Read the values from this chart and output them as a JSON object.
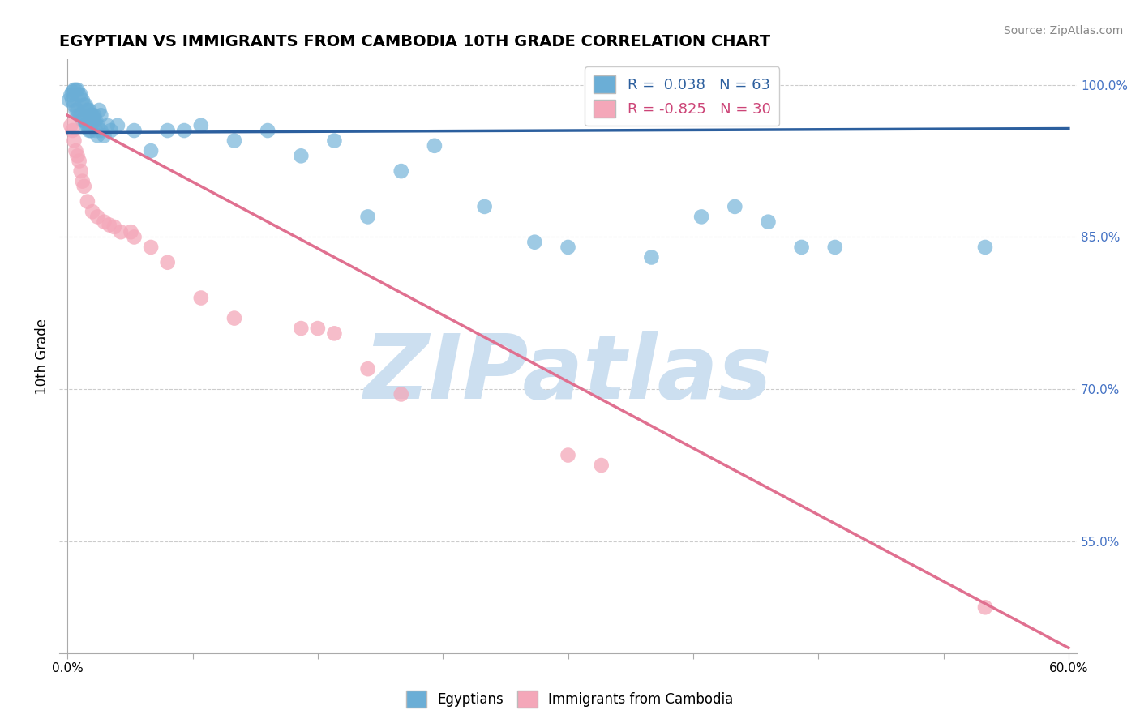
{
  "title": "EGYPTIAN VS IMMIGRANTS FROM CAMBODIA 10TH GRADE CORRELATION CHART",
  "source": "Source: ZipAtlas.com",
  "xlabel": "",
  "ylabel": "10th Grade",
  "xlim": [
    -0.005,
    0.605
  ],
  "ylim": [
    0.44,
    1.025
  ],
  "xticks": [
    0.0,
    0.075,
    0.15,
    0.225,
    0.3,
    0.375,
    0.45,
    0.525,
    0.6
  ],
  "xticklabels": [
    "0.0%",
    "",
    "",
    "",
    "",
    "",
    "",
    "",
    "60.0%"
  ],
  "yticks": [
    0.55,
    0.7,
    0.85,
    1.0
  ],
  "yticklabels": [
    "55.0%",
    "70.0%",
    "85.0%",
    "100.0%"
  ],
  "blue_R": 0.038,
  "blue_N": 63,
  "pink_R": -0.825,
  "pink_N": 30,
  "blue_color": "#6baed6",
  "pink_color": "#f4a7b9",
  "blue_line_color": "#2c5f9e",
  "pink_line_color": "#e07090",
  "grid_color": "#cccccc",
  "watermark": "ZIPatlas",
  "watermark_color": "#ccdff0",
  "blue_dots": [
    [
      0.001,
      0.985
    ],
    [
      0.002,
      0.99
    ],
    [
      0.003,
      0.985
    ],
    [
      0.004,
      0.98
    ],
    [
      0.005,
      0.975
    ],
    [
      0.006,
      0.975
    ],
    [
      0.007,
      0.97
    ],
    [
      0.008,
      0.97
    ],
    [
      0.009,
      0.965
    ],
    [
      0.01,
      0.965
    ],
    [
      0.011,
      0.96
    ],
    [
      0.012,
      0.96
    ],
    [
      0.013,
      0.955
    ],
    [
      0.014,
      0.955
    ],
    [
      0.015,
      0.97
    ],
    [
      0.016,
      0.97
    ],
    [
      0.017,
      0.965
    ],
    [
      0.018,
      0.96
    ],
    [
      0.019,
      0.975
    ],
    [
      0.02,
      0.97
    ],
    [
      0.003,
      0.993
    ],
    [
      0.004,
      0.995
    ],
    [
      0.005,
      0.995
    ],
    [
      0.006,
      0.995
    ],
    [
      0.007,
      0.99
    ],
    [
      0.008,
      0.99
    ],
    [
      0.009,
      0.985
    ],
    [
      0.01,
      0.98
    ],
    [
      0.011,
      0.98
    ],
    [
      0.012,
      0.975
    ],
    [
      0.013,
      0.975
    ],
    [
      0.014,
      0.97
    ],
    [
      0.015,
      0.965
    ],
    [
      0.016,
      0.965
    ],
    [
      0.017,
      0.955
    ],
    [
      0.018,
      0.95
    ],
    [
      0.02,
      0.955
    ],
    [
      0.022,
      0.95
    ],
    [
      0.024,
      0.96
    ],
    [
      0.026,
      0.955
    ],
    [
      0.03,
      0.96
    ],
    [
      0.04,
      0.955
    ],
    [
      0.05,
      0.935
    ],
    [
      0.06,
      0.955
    ],
    [
      0.07,
      0.955
    ],
    [
      0.08,
      0.96
    ],
    [
      0.1,
      0.945
    ],
    [
      0.12,
      0.955
    ],
    [
      0.14,
      0.93
    ],
    [
      0.16,
      0.945
    ],
    [
      0.18,
      0.87
    ],
    [
      0.2,
      0.915
    ],
    [
      0.22,
      0.94
    ],
    [
      0.25,
      0.88
    ],
    [
      0.28,
      0.845
    ],
    [
      0.3,
      0.84
    ],
    [
      0.35,
      0.83
    ],
    [
      0.38,
      0.87
    ],
    [
      0.4,
      0.88
    ],
    [
      0.42,
      0.865
    ],
    [
      0.44,
      0.84
    ],
    [
      0.46,
      0.84
    ],
    [
      0.55,
      0.84
    ]
  ],
  "pink_dots": [
    [
      0.002,
      0.96
    ],
    [
      0.003,
      0.955
    ],
    [
      0.004,
      0.945
    ],
    [
      0.005,
      0.935
    ],
    [
      0.006,
      0.93
    ],
    [
      0.007,
      0.925
    ],
    [
      0.008,
      0.915
    ],
    [
      0.009,
      0.905
    ],
    [
      0.01,
      0.9
    ],
    [
      0.012,
      0.885
    ],
    [
      0.015,
      0.875
    ],
    [
      0.018,
      0.87
    ],
    [
      0.022,
      0.865
    ],
    [
      0.025,
      0.862
    ],
    [
      0.028,
      0.86
    ],
    [
      0.032,
      0.855
    ],
    [
      0.038,
      0.855
    ],
    [
      0.04,
      0.85
    ],
    [
      0.05,
      0.84
    ],
    [
      0.06,
      0.825
    ],
    [
      0.08,
      0.79
    ],
    [
      0.1,
      0.77
    ],
    [
      0.14,
      0.76
    ],
    [
      0.15,
      0.76
    ],
    [
      0.16,
      0.755
    ],
    [
      0.18,
      0.72
    ],
    [
      0.2,
      0.695
    ],
    [
      0.3,
      0.635
    ],
    [
      0.32,
      0.625
    ],
    [
      0.55,
      0.485
    ]
  ],
  "blue_line_x": [
    0.0,
    0.6
  ],
  "blue_line_y": [
    0.953,
    0.957
  ],
  "pink_line_x": [
    0.0,
    0.6
  ],
  "pink_line_y": [
    0.97,
    0.445
  ]
}
